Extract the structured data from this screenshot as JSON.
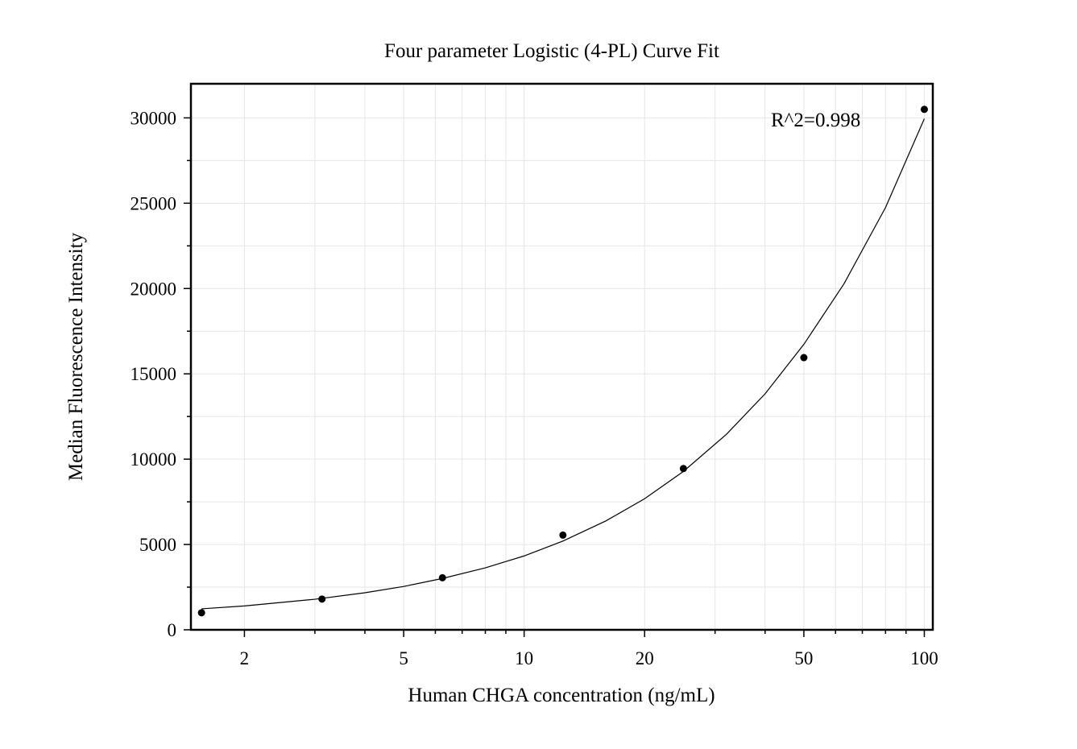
{
  "chart_data": {
    "type": "scatter",
    "title": "Four parameter Logistic (4-PL) Curve Fit",
    "xlabel": "Human CHGA concentration (ng/mL)",
    "ylabel": "Median Fluorescence Intensity",
    "x_scale": "log",
    "xlim": [
      1.47,
      105
    ],
    "ylim": [
      0,
      32000
    ],
    "x_ticks": [
      2,
      5,
      10,
      20,
      50,
      100
    ],
    "x_tick_labels": [
      "2",
      "5",
      "10",
      "20",
      "50",
      "100"
    ],
    "y_ticks": [
      0,
      5000,
      10000,
      15000,
      20000,
      25000,
      30000
    ],
    "y_tick_labels": [
      "0",
      "5000",
      "10000",
      "15000",
      "20000",
      "25000",
      "30000"
    ],
    "grid": true,
    "series": [
      {
        "points": [
          {
            "x": 1.5625,
            "y": 1000
          },
          {
            "x": 3.125,
            "y": 1800
          },
          {
            "x": 6.25,
            "y": 3050
          },
          {
            "x": 12.5,
            "y": 5550
          },
          {
            "x": 25,
            "y": 9450
          },
          {
            "x": 50,
            "y": 15950
          },
          {
            "x": 100,
            "y": 30500
          }
        ]
      }
    ],
    "fit_curve": [
      {
        "x": 1.5625,
        "y": 1230
      },
      {
        "x": 2,
        "y": 1400
      },
      {
        "x": 3,
        "y": 1790
      },
      {
        "x": 4,
        "y": 2170
      },
      {
        "x": 5,
        "y": 2540
      },
      {
        "x": 6.25,
        "y": 3010
      },
      {
        "x": 8,
        "y": 3630
      },
      {
        "x": 10,
        "y": 4330
      },
      {
        "x": 12.5,
        "y": 5200
      },
      {
        "x": 16,
        "y": 6380
      },
      {
        "x": 20,
        "y": 7680
      },
      {
        "x": 25,
        "y": 9280
      },
      {
        "x": 32,
        "y": 11450
      },
      {
        "x": 40,
        "y": 13830
      },
      {
        "x": 50,
        "y": 16730
      },
      {
        "x": 63,
        "y": 20280
      },
      {
        "x": 80,
        "y": 24750
      },
      {
        "x": 100,
        "y": 29950
      }
    ],
    "annotation": "R^2=0.998",
    "colors": {
      "line": "#000000",
      "marker": "#000000",
      "grid": "#e6e6e6",
      "frame": "#000000"
    }
  }
}
